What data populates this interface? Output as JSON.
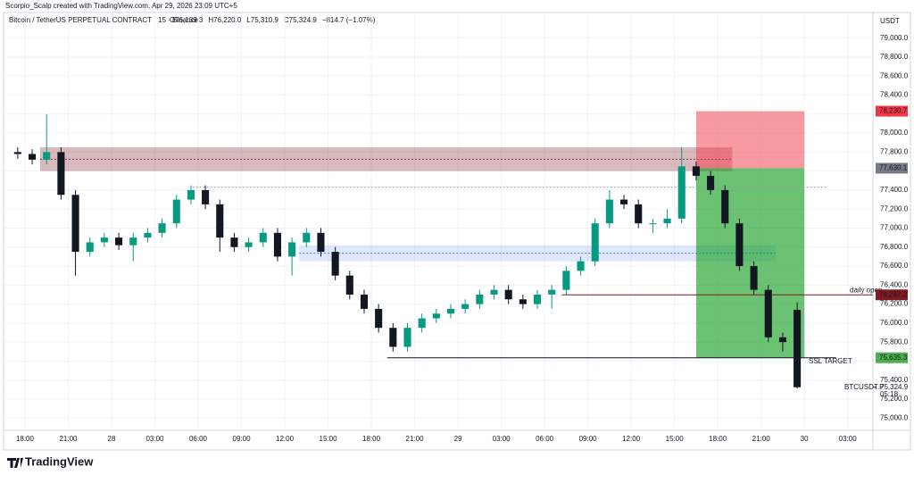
{
  "header": {
    "credit": "Scorpio_Scalp created with TradingView.com, Apr 29, 2026 23:09 UTC+5",
    "symbol": "Bitcoin / TetherUS PERPETUAL CONTRACT · 15 · Binance",
    "ohlc": [
      "O76,139.3",
      "H76,220.0",
      "L75,310.9",
      "C75,324.9",
      "−814.7 (−1.07%)"
    ]
  },
  "chart_data": {
    "type": "candlestick",
    "currency": "USDT",
    "up_color": "#089981",
    "down_color": "#131722",
    "x": [
      -0.5,
      0.5,
      1.5,
      2.5,
      3.5,
      4.5,
      5.5,
      6.5,
      7.5,
      8.5,
      9.5,
      10.5,
      11.5,
      12.5,
      13.5,
      14.5,
      15.5,
      16.5,
      17.5,
      18.5,
      19.5,
      20.5,
      21.5,
      22.5,
      23.5,
      24.5,
      25.5,
      26.5,
      27.5,
      28.5,
      29.5,
      30.5,
      31.5,
      32.5,
      33.5,
      34.5,
      35.5,
      36.5,
      37.5,
      38.5,
      39.5,
      40.5,
      41.5,
      42.5,
      43.5,
      44.5,
      45.5,
      46.5,
      47.5,
      48.5,
      49.5,
      50.5,
      51.5,
      52.5,
      53.5
    ],
    "open": [
      77800,
      77780,
      77720,
      77800,
      77350,
      76750,
      76850,
      76900,
      76820,
      76900,
      76950,
      77050,
      77300,
      77400,
      77250,
      76900,
      76800,
      76850,
      76950,
      76700,
      76850,
      76950,
      76750,
      76500,
      76300,
      76150,
      75950,
      75750,
      75950,
      76050,
      76100,
      76150,
      76200,
      76300,
      76350,
      76250,
      76200,
      76300,
      76350,
      76550,
      76650,
      77050,
      77300,
      77250,
      77050,
      77050,
      77100,
      77650,
      77550,
      77400,
      77050,
      76600,
      76350,
      75850,
      76139.3
    ],
    "high": [
      77850,
      77830,
      78200,
      77850,
      77400,
      76900,
      76950,
      76950,
      76950,
      77000,
      77100,
      77350,
      77450,
      77450,
      77300,
      76950,
      76900,
      77000,
      77000,
      76900,
      77000,
      77000,
      76800,
      76550,
      76350,
      76200,
      76000,
      76000,
      76100,
      76150,
      76200,
      76250,
      76350,
      76400,
      76400,
      76300,
      76350,
      76400,
      76600,
      76700,
      77100,
      77400,
      77350,
      77300,
      77100,
      77200,
      77850,
      77700,
      77600,
      77450,
      77100,
      76650,
      76400,
      75900,
      76220
    ],
    "low": [
      77730,
      77670,
      77670,
      77300,
      76500,
      76700,
      76800,
      76770,
      76650,
      76850,
      76900,
      77000,
      77250,
      77200,
      76750,
      76750,
      76750,
      76800,
      76650,
      76500,
      76800,
      76700,
      76450,
      76250,
      76100,
      75900,
      75700,
      75700,
      75900,
      76000,
      76050,
      76100,
      76150,
      76250,
      76200,
      76150,
      76150,
      76150,
      76300,
      76500,
      76600,
      77000,
      77200,
      77000,
      76950,
      77000,
      77050,
      77500,
      77350,
      77000,
      76550,
      76300,
      75800,
      75700,
      75310.9
    ],
    "close": [
      77780,
      77720,
      77800,
      77350,
      76750,
      76850,
      76900,
      76820,
      76900,
      76950,
      77050,
      77300,
      77400,
      77250,
      76900,
      76800,
      76850,
      76950,
      76700,
      76850,
      76950,
      76750,
      76500,
      76300,
      76150,
      75950,
      75750,
      75950,
      76050,
      76100,
      76150,
      76200,
      76300,
      76350,
      76250,
      76200,
      76300,
      76350,
      76550,
      76650,
      77050,
      77300,
      77250,
      77050,
      77050,
      77100,
      77650,
      77550,
      77400,
      77050,
      76600,
      76350,
      75850,
      75800,
      75324.9
    ],
    "xlim": [
      -1.42,
      58.75
    ],
    "ylim": [
      74890,
      79260
    ],
    "xticks": [
      {
        "value": 0,
        "label": "18:00"
      },
      {
        "value": 3,
        "label": "21:00"
      },
      {
        "value": 6,
        "label": "28"
      },
      {
        "value": 9,
        "label": "03:00"
      },
      {
        "value": 12,
        "label": "06:00"
      },
      {
        "value": 15,
        "label": "09:00"
      },
      {
        "value": 18,
        "label": "12:00"
      },
      {
        "value": 21,
        "label": "15:00"
      },
      {
        "value": 24,
        "label": "18:00"
      },
      {
        "value": 27,
        "label": "21:00"
      },
      {
        "value": 30,
        "label": "29"
      },
      {
        "value": 33,
        "label": "03:00"
      },
      {
        "value": 36,
        "label": "06:00"
      },
      {
        "value": 39,
        "label": "09:00"
      },
      {
        "value": 42,
        "label": "12:00"
      },
      {
        "value": 45,
        "label": "15:00"
      },
      {
        "value": 48,
        "label": "18:00"
      },
      {
        "value": 51,
        "label": "21:00"
      },
      {
        "value": 54,
        "label": "30"
      },
      {
        "value": 57,
        "label": "03:00"
      }
    ],
    "yticks": [
      {
        "value": 75000,
        "label": "75,000.0"
      },
      {
        "value": 75200,
        "label": "75,200.0"
      },
      {
        "value": 75400,
        "label": "75,400.0"
      },
      {
        "value": 75600,
        "label": "75,600.0"
      },
      {
        "value": 75800,
        "label": "75,800.0"
      },
      {
        "value": 76000,
        "label": "76,000.0"
      },
      {
        "value": 76200,
        "label": "76,200.0"
      },
      {
        "value": 76400,
        "label": "76,400.0"
      },
      {
        "value": 76600,
        "label": "76,600.0"
      },
      {
        "value": 76800,
        "label": "76,800.0"
      },
      {
        "value": 77000,
        "label": "77,000.0"
      },
      {
        "value": 77200,
        "label": "77,200.0"
      },
      {
        "value": 77400,
        "label": "77,400.0"
      },
      {
        "value": 77600,
        "label": "77,600.0"
      },
      {
        "value": 77800,
        "label": "77,800.0"
      },
      {
        "value": 78000,
        "label": "78,000.0"
      },
      {
        "value": 78200,
        "label": "78,200.0"
      },
      {
        "value": 78400,
        "label": "78,400.0"
      },
      {
        "value": 78600,
        "label": "78,600.0"
      },
      {
        "value": 78800,
        "label": "78,800.0"
      },
      {
        "value": 79000,
        "label": "79,000.0"
      }
    ],
    "zones": [
      {
        "x": [
          1.05,
          49
        ],
        "y": [
          77600,
          77850
        ],
        "mid": 77725,
        "color": "rgba(128,25,34,0.3)",
        "line": "#801922"
      },
      {
        "x": [
          19,
          52
        ],
        "y": [
          76650,
          76820
        ],
        "mid": 76735,
        "color": "rgba(41,98,255,0.15)",
        "line": "#2962ff"
      }
    ],
    "position": {
      "x": [
        46.5,
        54
      ],
      "entry": 77630.1,
      "stop": 78230.7,
      "target": 75635.3,
      "stop_color": "rgba(242,54,69,0.5)",
      "target_color": "rgba(8,153,20,0.6)"
    },
    "lines": [
      {
        "value": 77430,
        "x": [
          11.6,
          55.5
        ],
        "color": "#9598a1",
        "dash": "2 2"
      },
      {
        "value": 76297.2,
        "x": [
          37.2,
          58.75
        ],
        "color": "#801922",
        "dash": "",
        "label": "daily open"
      },
      {
        "value": 75635.3,
        "x": [
          25.1,
          56.2
        ],
        "color": "#131722",
        "dash": "",
        "label": "SSL TARGET"
      }
    ],
    "price_labels": {
      "values": [
        78230.7,
        77630.1,
        76297.2,
        75635.3
      ],
      "value_labels": [
        "78,230.7",
        "77,630.1",
        "76,297.2",
        "75,635.3"
      ],
      "colors": [
        "#f23645",
        "#787b86",
        "#801922",
        "#4caf50"
      ]
    },
    "last": {
      "symbol": "BTCUSDT.P",
      "value": 75324.9,
      "value_label": "75,324.9",
      "countdown": "05:18"
    }
  },
  "footer": {
    "logo": "TradingView"
  }
}
